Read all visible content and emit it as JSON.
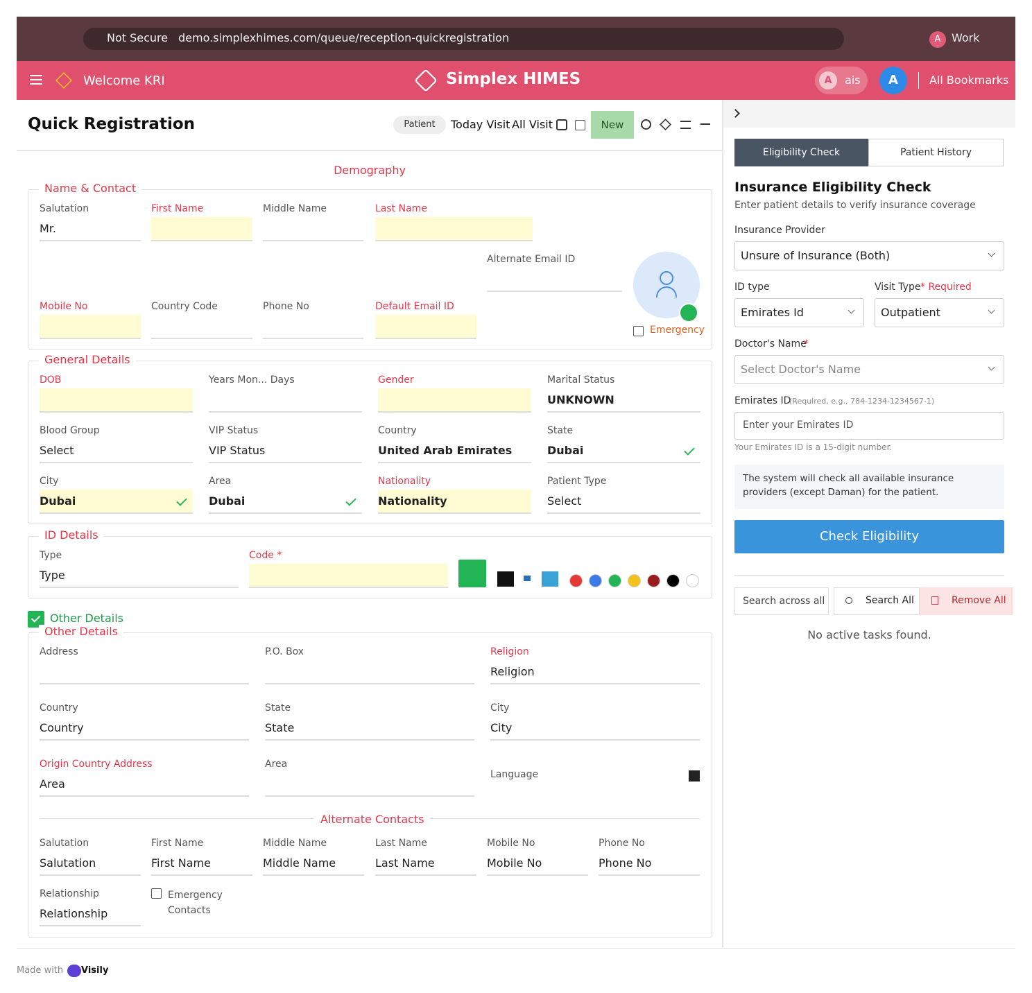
{
  "browser": {
    "security": "Not Secure",
    "url": "demo.simplexhimes.com/queue/reception-quickregistration",
    "profile_initial": "A",
    "profile": "Work"
  },
  "header": {
    "welcome": "Welcome KRI",
    "brand": "Simplex HIMES",
    "user_initial": "A",
    "user": "ais",
    "avatar": "A",
    "bookmarks": "All Bookmarks"
  },
  "toolbar": {
    "title": "Quick Registration",
    "chip": "Patient",
    "today": "Today Visit",
    "all": "All Visit",
    "new": "New"
  },
  "form": {
    "section_title": "Demography",
    "name_contact": {
      "legend": "Name & Contact",
      "fields": [
        {
          "label": "Salutation",
          "value": "Mr."
        },
        {
          "label": "First Name"
        },
        {
          "label": "Middle Name"
        },
        {
          "label": "Last Name"
        },
        {
          "label": "Alternate Email ID"
        },
        {
          "label": "Mobile No"
        },
        {
          "label": "Country Code"
        },
        {
          "label": "Phone No"
        },
        {
          "label": "Default Email ID"
        }
      ],
      "emergency": "Emergency"
    },
    "general": {
      "legend": "General Details",
      "fields": [
        {
          "label": "DOB"
        },
        {
          "label": "Years Mon... Days"
        },
        {
          "label": "Gender"
        },
        {
          "label": "Marital Status",
          "value": "UNKNOWN"
        },
        {
          "label": "Blood Group",
          "value": "Select"
        },
        {
          "label": "VIP Status",
          "value": "VIP Status"
        },
        {
          "label": "Country",
          "value": "United Arab Emirates"
        },
        {
          "label": "State",
          "value": "Dubai"
        },
        {
          "label": "City",
          "value": "Dubai"
        },
        {
          "label": "Area",
          "value": "Dubai"
        },
        {
          "label": "Nationality",
          "value": "Nationality"
        },
        {
          "label": "Patient Type",
          "value": "Select"
        }
      ]
    },
    "id_details": {
      "legend": "ID Details",
      "fields": [
        {
          "label": "Type",
          "value": "Type"
        },
        {
          "label": "Code *"
        }
      ]
    },
    "other_toggle": "Other Details",
    "other": {
      "legend": "Other Details",
      "fields": [
        {
          "label": "Address"
        },
        {
          "label": "P.O. Box"
        },
        {
          "label": "Religion",
          "value": "Religion"
        },
        {
          "label": "Country",
          "value": "Country"
        },
        {
          "label": "State",
          "value": "State"
        },
        {
          "label": "City",
          "value": "City"
        },
        {
          "label": "Origin Country Address",
          "value": "Area"
        },
        {
          "label": "Area"
        },
        {
          "label": "Language"
        }
      ]
    },
    "alternate": {
      "title": "Alternate Contacts",
      "fields": [
        {
          "label": "Salutation",
          "value": "Salutation"
        },
        {
          "label": "First Name",
          "value": "First Name"
        },
        {
          "label": "Middle Name",
          "value": "Middle Name"
        },
        {
          "label": "Last Name",
          "value": "Last Name"
        },
        {
          "label": "Mobile No",
          "value": "Mobile No"
        },
        {
          "label": "Phone No",
          "value": "Phone No"
        },
        {
          "label": "Relationship",
          "value": "Relationship"
        }
      ],
      "emergency_contacts": "Emergency Contacts"
    }
  },
  "side": {
    "tabs": [
      "Eligibility Check",
      "Patient History"
    ],
    "title": "Insurance Eligibility Check",
    "subtitle": "Enter patient details to verify insurance coverage",
    "provider_label": "Insurance Provider",
    "provider": "Unsure of Insurance (Both)",
    "id_type_label": "ID type",
    "id_type": "Emirates Id",
    "visit_type_label": "Visit Type",
    "visit_type_required": "* Required",
    "visit_type": "Outpatient",
    "doctor_label": "Doctor's Name",
    "doctor_required": "*",
    "doctor_placeholder": "Select Doctor's Name",
    "emirates_label": "Emirates ID",
    "emirates_hint": "(Required, e.g., 784-1234-1234567-1)",
    "emirates_placeholder": "Enter your Emirates ID",
    "emirates_help": "Your Emirates ID is a 15-digit number.",
    "info": "The system will check all available insurance providers (except Daman) for the patient.",
    "button": "Check Eligibility",
    "search_placeholder": "Search across all",
    "search_all": "Search All",
    "remove_all": "Remove All",
    "empty": "No active tasks found."
  },
  "footer": {
    "made_with": "Made with",
    "brand": "Visily"
  }
}
